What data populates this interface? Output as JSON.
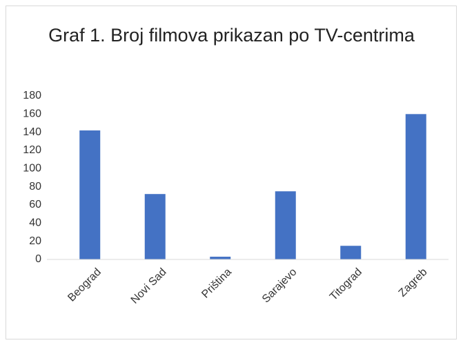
{
  "chart_data": {
    "type": "bar",
    "title": "Graf 1. Broj filmova prikazan po TV-centrima",
    "categories": [
      "Beograd",
      "Novi Sad",
      "Priština",
      "Sarajevo",
      "Titograd",
      "Zagreb"
    ],
    "values": [
      142,
      72,
      3,
      75,
      15,
      160
    ],
    "color": "#4472c4",
    "ylim": [
      0,
      180
    ],
    "yticks": [
      0,
      20,
      40,
      60,
      80,
      100,
      120,
      140,
      160,
      180
    ],
    "grid": false
  }
}
